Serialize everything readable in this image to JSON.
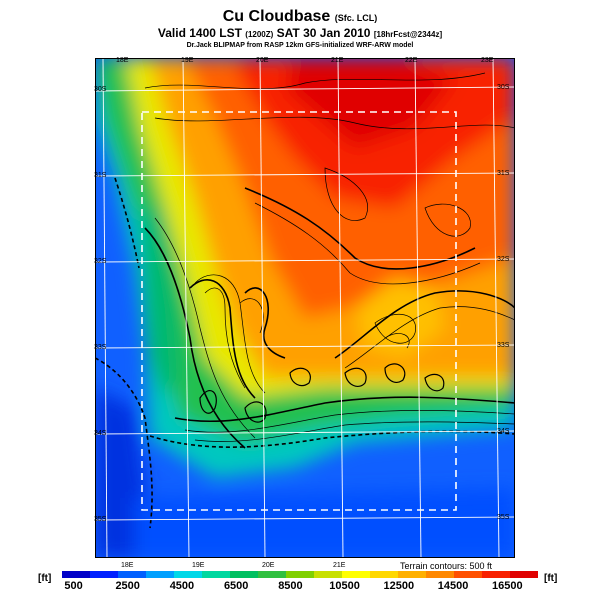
{
  "header": {
    "title": "Cu Cloudbase",
    "title_suffix": "(Sfc. LCL)",
    "valid": "Valid 1400 LST",
    "valid_code": "(1200Z)",
    "valid_date": "SAT 30 Jan 2010",
    "valid_note": "[18hrFcst@2344z]",
    "credit": "Dr.Jack BLIPMAP from RASP 12km GFS-initialized WRF-ARW model"
  },
  "map": {
    "lon_top": [
      "18E",
      "19E",
      "20E",
      "21E",
      "22E",
      "23E"
    ],
    "lon_bottom": [
      "18E",
      "19E",
      "20E",
      "21E"
    ],
    "lat_left": [
      "30S",
      "31S",
      "32S",
      "33S",
      "34S",
      "35S"
    ],
    "lat_right": [
      "30S",
      "31S",
      "32S",
      "33S",
      "34S",
      "35S"
    ],
    "terrain_note": "Terrain contours: 500 ft"
  },
  "legend": {
    "unit_left": "[ft]",
    "unit_right": "[ft]",
    "ticks": [
      "500",
      "2500",
      "4500",
      "6500",
      "8500",
      "10500",
      "12500",
      "14500",
      "16500"
    ],
    "colors": [
      "#0000c8",
      "#0020ff",
      "#0060ff",
      "#00a0ff",
      "#00d8e8",
      "#00d8a0",
      "#00c060",
      "#30c040",
      "#80d000",
      "#c8e000",
      "#ffff00",
      "#ffd800",
      "#ffb000",
      "#ff8800",
      "#ff5000",
      "#f82000",
      "#e00000"
    ]
  }
}
